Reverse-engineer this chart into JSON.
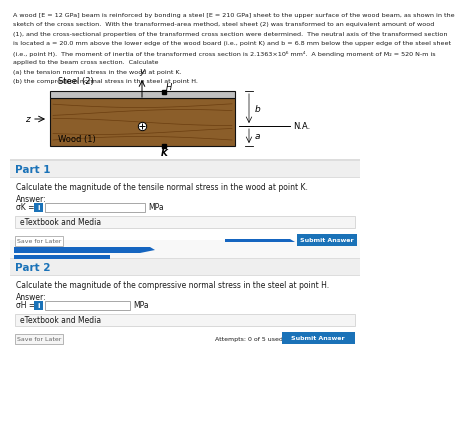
{
  "title_line1": "A wood [E = 12 GPa] beam is reinforced by bonding a steel [E = 210 GPa] sheet to the upper surface of the wood beam, as shown in the",
  "title_line2": "sketch of the cross section.  With the transformed-area method, steel sheet (2) was transformed to an equivalent amount of wood",
  "title_line3": "(1), and the cross-sectional properties of the transformed cross section were determined.  The neutral axis of the transformed section",
  "title_line4": "is located a = 20.0 mm above the lower edge of the wood board (i.e., point K) and b = 6.8 mm below the upper edge of the steel sheet",
  "title_line5": "(i.e., point H).  The moment of inertia of the transformed cross section is 2.1363×10⁶ mm⁴.  A bending moment of M₂ = 520 N-m is",
  "title_line6": "applied to the beam cross section.  Calculate",
  "title_line7": "(a) the tension normal stress in the wood at point K.",
  "title_line8": "(b) the compression normal stress in the steel at point H.",
  "part1_header": "Part 1",
  "part1_question": "Calculate the magnitude of the tensile normal stress in the wood at point K.",
  "part1_answer_label": "Answer:",
  "part1_sigma_label": "σK =",
  "part1_unit": "MPa",
  "part1_etextbook": "eTextbook and Media",
  "part1_save": "Save for Later",
  "part1_submit": "Submit Answer",
  "part2_header": "Part 2",
  "part2_question": "Calculate the magnitude of the compressive normal stress in the steel at point H.",
  "part2_answer_label": "Answer:",
  "part2_sigma_label": "σH =",
  "part2_unit": "MPa",
  "part2_etextbook": "eTextbook and Media",
  "part2_save": "Save for Later",
  "part2_attempts": "Attempts: 0 of 5 used",
  "part2_submit": "Submit Answer",
  "bg_white": "#ffffff",
  "bg_light_gray": "#efefef",
  "text_dark": "#1a1a1a",
  "text_gray": "#666666",
  "text_bold_gray": "#333333",
  "part_color": "#1a72b8",
  "submit_btn_color": "#1a72b8",
  "wood_color": "#8B5E2A",
  "steel_color": "#c0c0c0",
  "etextbook_bg": "#f5f5f5",
  "etextbook_border": "#cccccc",
  "input_border": "#999999",
  "info_btn_color": "#1a72b8",
  "blueout_color": "#1565C0",
  "sep_color": "#dddddd"
}
